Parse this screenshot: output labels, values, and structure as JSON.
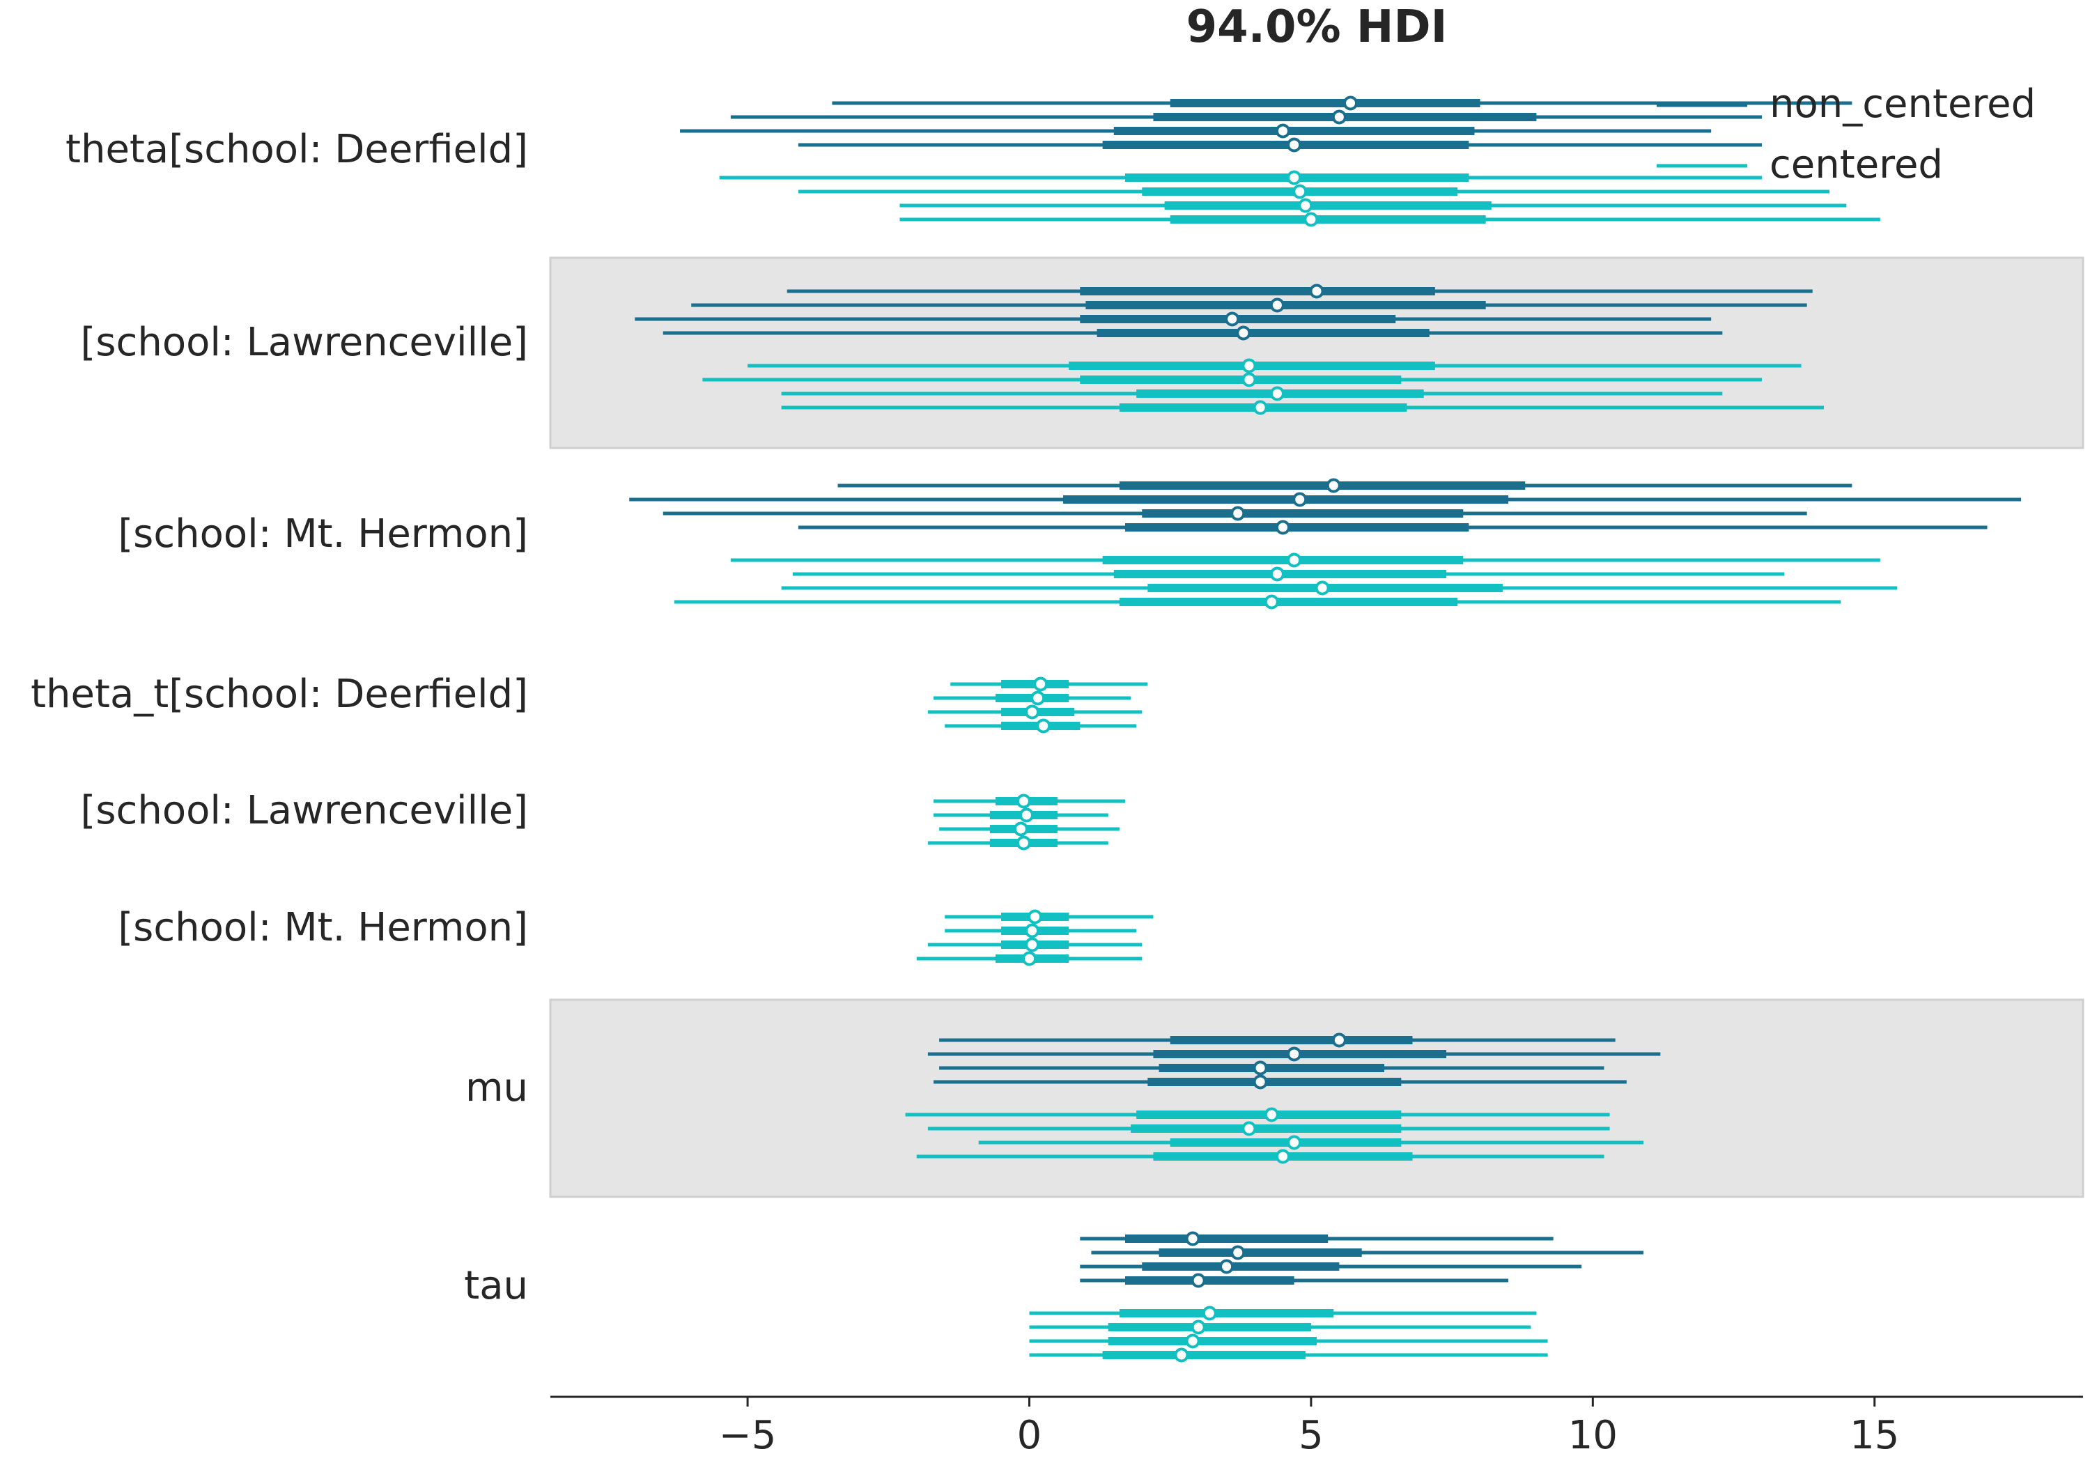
{
  "chart_data": {
    "type": "forest",
    "title": "94.0% HDI",
    "xlim": [
      -8.5,
      18.7
    ],
    "xticks": [
      -5,
      0,
      5,
      10,
      15
    ],
    "xtick_labels": [
      "−5",
      "0",
      "5",
      "10",
      "15"
    ],
    "legend": {
      "placement": "top-right",
      "entries": [
        {
          "name": "non_centered",
          "color": "#1a6f8f"
        },
        {
          "name": "centered",
          "color": "#12bfc1"
        }
      ]
    },
    "colors": {
      "non_centered": "#1a6f8f",
      "centered": "#12bfc1",
      "band": "#e5e5e5",
      "axis": "#262626"
    },
    "variables": [
      {
        "label": "theta[school: Deerfield]",
        "shaded": false,
        "models": [
          {
            "name": "non_centered",
            "chains": [
              {
                "hdi94": [
                  -3.5,
                  14.6
                ],
                "iqr": [
                  2.5,
                  8.0
                ],
                "median": 5.7
              },
              {
                "hdi94": [
                  -5.3,
                  13.0
                ],
                "iqr": [
                  2.2,
                  9.0
                ],
                "median": 5.5
              },
              {
                "hdi94": [
                  -6.2,
                  12.1
                ],
                "iqr": [
                  1.5,
                  7.9
                ],
                "median": 4.5
              },
              {
                "hdi94": [
                  -4.1,
                  13.0
                ],
                "iqr": [
                  1.3,
                  7.8
                ],
                "median": 4.7
              }
            ]
          },
          {
            "name": "centered",
            "chains": [
              {
                "hdi94": [
                  -5.5,
                  13.0
                ],
                "iqr": [
                  1.7,
                  7.8
                ],
                "median": 4.7
              },
              {
                "hdi94": [
                  -4.1,
                  14.2
                ],
                "iqr": [
                  2.0,
                  7.6
                ],
                "median": 4.8
              },
              {
                "hdi94": [
                  -2.3,
                  14.5
                ],
                "iqr": [
                  2.4,
                  8.2
                ],
                "median": 4.9
              },
              {
                "hdi94": [
                  -2.3,
                  15.1
                ],
                "iqr": [
                  2.5,
                  8.1
                ],
                "median": 5.0
              }
            ]
          }
        ]
      },
      {
        "label": "[school: Lawrenceville]",
        "shaded": true,
        "models": [
          {
            "name": "non_centered",
            "chains": [
              {
                "hdi94": [
                  -4.3,
                  13.9
                ],
                "iqr": [
                  0.9,
                  7.2
                ],
                "median": 5.1
              },
              {
                "hdi94": [
                  -6.0,
                  13.8
                ],
                "iqr": [
                  1.0,
                  8.1
                ],
                "median": 4.4
              },
              {
                "hdi94": [
                  -7.0,
                  12.1
                ],
                "iqr": [
                  0.9,
                  6.5
                ],
                "median": 3.6
              },
              {
                "hdi94": [
                  -6.5,
                  12.3
                ],
                "iqr": [
                  1.2,
                  7.1
                ],
                "median": 3.8
              }
            ]
          },
          {
            "name": "centered",
            "chains": [
              {
                "hdi94": [
                  -5.0,
                  13.7
                ],
                "iqr": [
                  0.7,
                  7.2
                ],
                "median": 3.9
              },
              {
                "hdi94": [
                  -5.8,
                  13.0
                ],
                "iqr": [
                  0.9,
                  6.6
                ],
                "median": 3.9
              },
              {
                "hdi94": [
                  -4.4,
                  12.3
                ],
                "iqr": [
                  1.9,
                  7.0
                ],
                "median": 4.4
              },
              {
                "hdi94": [
                  -4.4,
                  14.1
                ],
                "iqr": [
                  1.6,
                  6.7
                ],
                "median": 4.1
              }
            ]
          }
        ]
      },
      {
        "label": "[school: Mt. Hermon]",
        "shaded": false,
        "models": [
          {
            "name": "non_centered",
            "chains": [
              {
                "hdi94": [
                  -3.4,
                  14.6
                ],
                "iqr": [
                  1.6,
                  8.8
                ],
                "median": 5.4
              },
              {
                "hdi94": [
                  -7.1,
                  17.6
                ],
                "iqr": [
                  0.6,
                  8.5
                ],
                "median": 4.8
              },
              {
                "hdi94": [
                  -6.5,
                  13.8
                ],
                "iqr": [
                  2.0,
                  7.7
                ],
                "median": 3.7
              },
              {
                "hdi94": [
                  -4.1,
                  17.0
                ],
                "iqr": [
                  1.7,
                  7.8
                ],
                "median": 4.5
              }
            ]
          },
          {
            "name": "centered",
            "chains": [
              {
                "hdi94": [
                  -5.3,
                  15.1
                ],
                "iqr": [
                  1.3,
                  7.7
                ],
                "median": 4.7
              },
              {
                "hdi94": [
                  -4.2,
                  13.4
                ],
                "iqr": [
                  1.5,
                  7.4
                ],
                "median": 4.4
              },
              {
                "hdi94": [
                  -4.4,
                  15.4
                ],
                "iqr": [
                  2.1,
                  8.4
                ],
                "median": 5.2
              },
              {
                "hdi94": [
                  -6.3,
                  14.4
                ],
                "iqr": [
                  1.6,
                  7.6
                ],
                "median": 4.3
              }
            ]
          }
        ]
      },
      {
        "label": "theta_t[school: Deerfield]",
        "shaded": false,
        "models": [
          {
            "name": "centered",
            "chains": [
              {
                "hdi94": [
                  -1.4,
                  2.1
                ],
                "iqr": [
                  -0.5,
                  0.7
                ],
                "median": 0.2
              },
              {
                "hdi94": [
                  -1.7,
                  1.8
                ],
                "iqr": [
                  -0.6,
                  0.7
                ],
                "median": 0.15
              },
              {
                "hdi94": [
                  -1.8,
                  2.0
                ],
                "iqr": [
                  -0.5,
                  0.8
                ],
                "median": 0.05
              },
              {
                "hdi94": [
                  -1.5,
                  1.9
                ],
                "iqr": [
                  -0.5,
                  0.9
                ],
                "median": 0.25
              }
            ]
          }
        ]
      },
      {
        "label": "[school: Lawrenceville]",
        "shaded": false,
        "models": [
          {
            "name": "centered",
            "chains": [
              {
                "hdi94": [
                  -1.7,
                  1.7
                ],
                "iqr": [
                  -0.6,
                  0.5
                ],
                "median": -0.1
              },
              {
                "hdi94": [
                  -1.7,
                  1.4
                ],
                "iqr": [
                  -0.7,
                  0.5
                ],
                "median": -0.05
              },
              {
                "hdi94": [
                  -1.6,
                  1.6
                ],
                "iqr": [
                  -0.7,
                  0.5
                ],
                "median": -0.15
              },
              {
                "hdi94": [
                  -1.8,
                  1.4
                ],
                "iqr": [
                  -0.7,
                  0.5
                ],
                "median": -0.1
              }
            ]
          }
        ]
      },
      {
        "label": "[school: Mt. Hermon]",
        "shaded": false,
        "models": [
          {
            "name": "centered",
            "chains": [
              {
                "hdi94": [
                  -1.5,
                  2.2
                ],
                "iqr": [
                  -0.5,
                  0.7
                ],
                "median": 0.1
              },
              {
                "hdi94": [
                  -1.5,
                  1.9
                ],
                "iqr": [
                  -0.5,
                  0.7
                ],
                "median": 0.05
              },
              {
                "hdi94": [
                  -1.8,
                  2.0
                ],
                "iqr": [
                  -0.5,
                  0.7
                ],
                "median": 0.05
              },
              {
                "hdi94": [
                  -2.0,
                  2.0
                ],
                "iqr": [
                  -0.6,
                  0.7
                ],
                "median": 0.0
              }
            ]
          }
        ]
      },
      {
        "label": "mu",
        "shaded": true,
        "models": [
          {
            "name": "non_centered",
            "chains": [
              {
                "hdi94": [
                  -1.6,
                  10.4
                ],
                "iqr": [
                  2.5,
                  6.8
                ],
                "median": 5.5
              },
              {
                "hdi94": [
                  -1.8,
                  11.2
                ],
                "iqr": [
                  2.2,
                  7.4
                ],
                "median": 4.7
              },
              {
                "hdi94": [
                  -1.6,
                  10.2
                ],
                "iqr": [
                  2.3,
                  6.3
                ],
                "median": 4.1
              },
              {
                "hdi94": [
                  -1.7,
                  10.6
                ],
                "iqr": [
                  2.1,
                  6.6
                ],
                "median": 4.1
              }
            ]
          },
          {
            "name": "centered",
            "chains": [
              {
                "hdi94": [
                  -2.2,
                  10.3
                ],
                "iqr": [
                  1.9,
                  6.6
                ],
                "median": 4.3
              },
              {
                "hdi94": [
                  -1.8,
                  10.3
                ],
                "iqr": [
                  1.8,
                  6.6
                ],
                "median": 3.9
              },
              {
                "hdi94": [
                  -0.9,
                  10.9
                ],
                "iqr": [
                  2.5,
                  6.6
                ],
                "median": 4.7
              },
              {
                "hdi94": [
                  -2.0,
                  10.2
                ],
                "iqr": [
                  2.2,
                  6.8
                ],
                "median": 4.5
              }
            ]
          }
        ]
      },
      {
        "label": "tau",
        "shaded": false,
        "models": [
          {
            "name": "non_centered",
            "chains": [
              {
                "hdi94": [
                  0.9,
                  9.3
                ],
                "iqr": [
                  1.7,
                  5.3
                ],
                "median": 2.9
              },
              {
                "hdi94": [
                  1.1,
                  10.9
                ],
                "iqr": [
                  2.3,
                  5.9
                ],
                "median": 3.7
              },
              {
                "hdi94": [
                  0.9,
                  9.8
                ],
                "iqr": [
                  2.0,
                  5.5
                ],
                "median": 3.5
              },
              {
                "hdi94": [
                  0.9,
                  8.5
                ],
                "iqr": [
                  1.7,
                  4.7
                ],
                "median": 3.0
              }
            ]
          },
          {
            "name": "centered",
            "chains": [
              {
                "hdi94": [
                  0.0,
                  9.0
                ],
                "iqr": [
                  1.6,
                  5.4
                ],
                "median": 3.2
              },
              {
                "hdi94": [
                  0.0,
                  8.9
                ],
                "iqr": [
                  1.4,
                  5.0
                ],
                "median": 3.0
              },
              {
                "hdi94": [
                  0.0,
                  9.2
                ],
                "iqr": [
                  1.4,
                  5.1
                ],
                "median": 2.9
              },
              {
                "hdi94": [
                  0.0,
                  9.2
                ],
                "iqr": [
                  1.3,
                  4.9
                ],
                "median": 2.7
              }
            ]
          }
        ]
      }
    ]
  }
}
